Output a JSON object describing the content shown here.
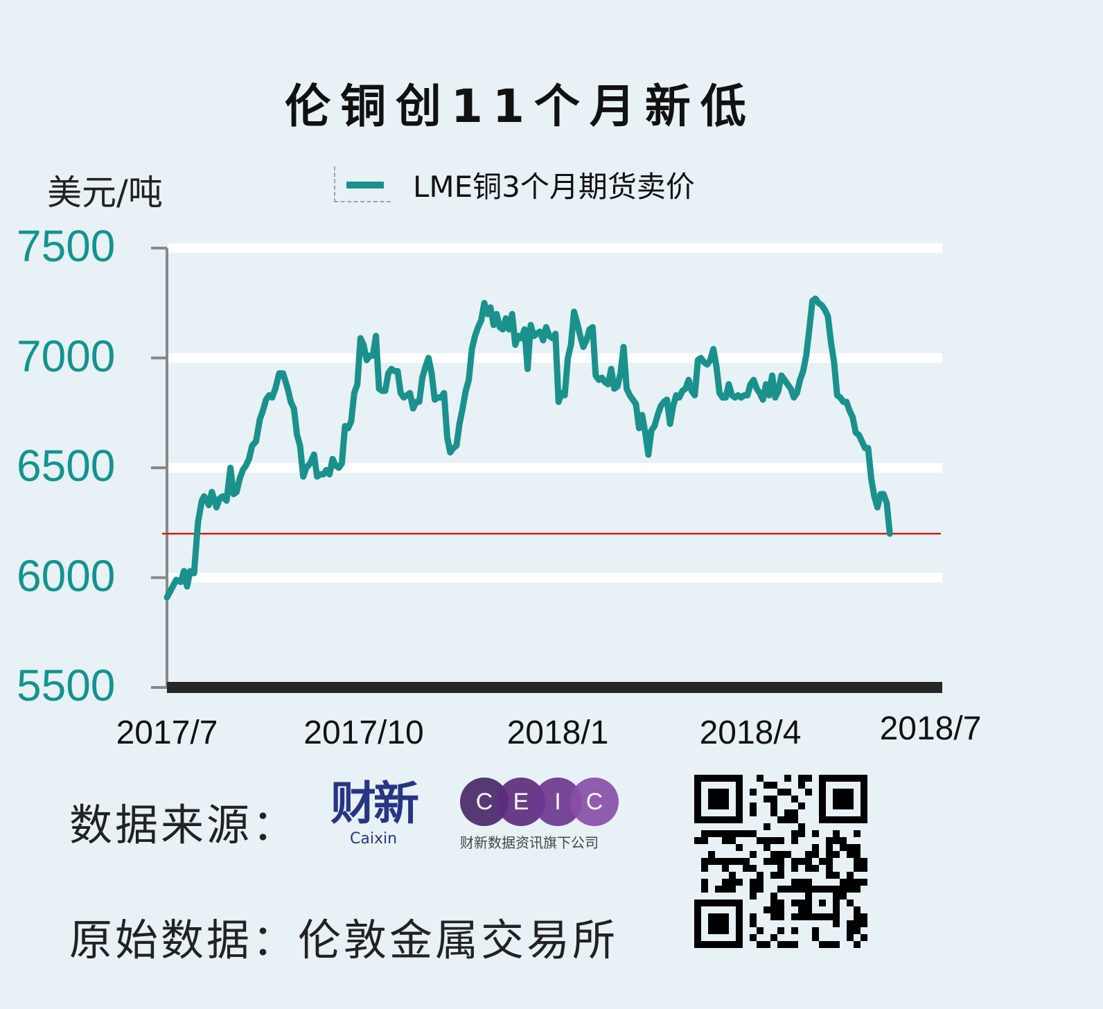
{
  "title": "伦铜创11个月新低",
  "unit_label": "美元/吨",
  "legend": {
    "label": "LME铜3个月期货卖价",
    "color": "#1a918d"
  },
  "colors": {
    "background": "#e8f1f5",
    "line": "#1a918d",
    "reference_line": "#d7191c",
    "gridline": "#ffffff",
    "axis": "#888888",
    "baseline": "#262626",
    "ytick_text": "#13938f"
  },
  "chart_data": {
    "type": "line",
    "title": "伦铜创11个月新低",
    "xlabel": "",
    "ylabel": "美元/吨",
    "ylim": [
      5500,
      7500
    ],
    "yticks": [
      5500,
      6000,
      6500,
      7000,
      7500
    ],
    "xtick_labels": [
      "2017/7",
      "2017/10",
      "2018/1",
      "2018/4",
      "2018/7"
    ],
    "grid": true,
    "legend_position": "top",
    "reference_line": {
      "value": 6200,
      "color": "#d7191c",
      "label": ""
    },
    "series": [
      {
        "name": "LME铜3个月期货卖价",
        "x_fraction": [
          0.0,
          0.006,
          0.012,
          0.018,
          0.022,
          0.026,
          0.03,
          0.035,
          0.04,
          0.045,
          0.048,
          0.05,
          0.054,
          0.058,
          0.064,
          0.068,
          0.072,
          0.077,
          0.082,
          0.086,
          0.09,
          0.094,
          0.098,
          0.102,
          0.106,
          0.11,
          0.115,
          0.12,
          0.124,
          0.128,
          0.132,
          0.136,
          0.14,
          0.145,
          0.15,
          0.156,
          0.16,
          0.164,
          0.168,
          0.172,
          0.176,
          0.18,
          0.185,
          0.19,
          0.194,
          0.198,
          0.202,
          0.206,
          0.21,
          0.214,
          0.218,
          0.222,
          0.226,
          0.23,
          0.234,
          0.238,
          0.242,
          0.246,
          0.25,
          0.254,
          0.258,
          0.262,
          0.266,
          0.27,
          0.274,
          0.278,
          0.282,
          0.286,
          0.29,
          0.294,
          0.298,
          0.302,
          0.306,
          0.31,
          0.314,
          0.318,
          0.322,
          0.326,
          0.33,
          0.334,
          0.338,
          0.342,
          0.346,
          0.35,
          0.354,
          0.358,
          0.362,
          0.366,
          0.37,
          0.374,
          0.378,
          0.382,
          0.386,
          0.39,
          0.394,
          0.398,
          0.402,
          0.406,
          0.41,
          0.414,
          0.418,
          0.422,
          0.426,
          0.43,
          0.434,
          0.438,
          0.442,
          0.446,
          0.45,
          0.454,
          0.458,
          0.462,
          0.466,
          0.47,
          0.474,
          0.478,
          0.482,
          0.486,
          0.49,
          0.494,
          0.498,
          0.502,
          0.506,
          0.51,
          0.514,
          0.518,
          0.522,
          0.526,
          0.53,
          0.534,
          0.538,
          0.542,
          0.546,
          0.55,
          0.554,
          0.558,
          0.562,
          0.566,
          0.57,
          0.574,
          0.578,
          0.582,
          0.586,
          0.59,
          0.594,
          0.598,
          0.602,
          0.606,
          0.61,
          0.614,
          0.618,
          0.622,
          0.626,
          0.63,
          0.634,
          0.638,
          0.642,
          0.646,
          0.65,
          0.654,
          0.658,
          0.662,
          0.666,
          0.67,
          0.674,
          0.678,
          0.682,
          0.686,
          0.69,
          0.694,
          0.698,
          0.702,
          0.706,
          0.71,
          0.714,
          0.718,
          0.722,
          0.726,
          0.73,
          0.734,
          0.738,
          0.742,
          0.746,
          0.75,
          0.754,
          0.758,
          0.762,
          0.766,
          0.77,
          0.774,
          0.778,
          0.782,
          0.786,
          0.79,
          0.794,
          0.798,
          0.802,
          0.806,
          0.81,
          0.814,
          0.818,
          0.822,
          0.826,
          0.83,
          0.834,
          0.838,
          0.842,
          0.846,
          0.85,
          0.854,
          0.858,
          0.862,
          0.866,
          0.87,
          0.874,
          0.878,
          0.882,
          0.886,
          0.89,
          0.894,
          0.898,
          0.902,
          0.906,
          0.91,
          0.914,
          0.918,
          0.922,
          0.926,
          0.93,
          0.934,
          0.938,
          0.942,
          0.946,
          0.95,
          0.954,
          0.958,
          0.962,
          0.966,
          0.97,
          0.974,
          0.978,
          0.982,
          0.986,
          0.99,
          0.994,
          0.997,
          1.0
        ],
        "values": [
          5910,
          5950,
          5990,
          5980,
          6030,
          5960,
          6030,
          6020,
          6250,
          6350,
          6370,
          6360,
          6330,
          6390,
          6320,
          6360,
          6370,
          6350,
          6500,
          6380,
          6390,
          6450,
          6490,
          6510,
          6540,
          6600,
          6620,
          6720,
          6760,
          6810,
          6830,
          6820,
          6860,
          6930,
          6930,
          6860,
          6800,
          6770,
          6650,
          6600,
          6460,
          6500,
          6520,
          6560,
          6460,
          6470,
          6470,
          6490,
          6470,
          6540,
          6510,
          6500,
          6520,
          6690,
          6680,
          6710,
          6840,
          6880,
          7090,
          7060,
          6990,
          7010,
          7010,
          7100,
          6860,
          6850,
          6850,
          6930,
          6950,
          6940,
          6940,
          6840,
          6820,
          6830,
          6840,
          6770,
          6800,
          6800,
          6910,
          6960,
          7000,
          6930,
          6810,
          6820,
          6820,
          6840,
          6640,
          6570,
          6590,
          6600,
          6700,
          6770,
          6850,
          6900,
          7040,
          7100,
          7140,
          7170,
          7250,
          7200,
          7230,
          7150,
          7200,
          7140,
          7130,
          7180,
          7130,
          7200,
          7060,
          7100,
          7090,
          7130,
          6950,
          7150,
          7100,
          7110,
          7120,
          7080,
          7140,
          7100,
          7090,
          7110,
          6800,
          6840,
          6830,
          7000,
          7060,
          7210,
          7160,
          7100,
          7050,
          7080,
          7130,
          7140,
          6920,
          6900,
          6910,
          6890,
          6880,
          6950,
          6860,
          6870,
          6930,
          7050,
          6860,
          6830,
          6810,
          6790,
          6680,
          6740,
          6660,
          6560,
          6670,
          6690,
          6740,
          6780,
          6800,
          6810,
          6700,
          6780,
          6830,
          6820,
          6850,
          6860,
          6900,
          6850,
          6830,
          6990,
          7000,
          6980,
          6970,
          6990,
          7040,
          6960,
          6840,
          6820,
          6820,
          6880,
          6830,
          6820,
          6830,
          6820,
          6830,
          6830,
          6880,
          6900,
          6860,
          6840,
          6810,
          6880,
          6830,
          6920,
          6820,
          6850,
          6920,
          6900,
          6880,
          6860,
          6820,
          6840,
          6900,
          6940,
          7010,
          7130,
          7260,
          7270,
          7250,
          7240,
          7220,
          7190,
          7070,
          6980,
          6830,
          6820,
          6800,
          6800,
          6760,
          6730,
          6660,
          6650,
          6620,
          6590,
          6590,
          6450,
          6370,
          6320,
          6380,
          6380,
          6340,
          6200
        ]
      }
    ]
  },
  "y_axis": {
    "ticks": [
      "7500",
      "7000",
      "6500",
      "6000",
      "5500"
    ]
  },
  "x_axis": {
    "ticks": [
      "2017/7",
      "2017/10",
      "2018/1",
      "2018/4",
      "2018/7"
    ]
  },
  "footer": {
    "source_label": "数据来源：",
    "caixin": {
      "cn": "财新",
      "en": "Caixin",
      "color": "#283583"
    },
    "ceic": {
      "letters": [
        "C",
        "E",
        "I",
        "C"
      ],
      "circle_colors": [
        "#4a2a6a",
        "#5e2d7e",
        "#6e3890",
        "#8a4fa8"
      ],
      "subtitle": "财新数据资讯旗下公司"
    },
    "raw_source": "原始数据：伦敦金属交易所",
    "qr_code": "qr-code"
  }
}
